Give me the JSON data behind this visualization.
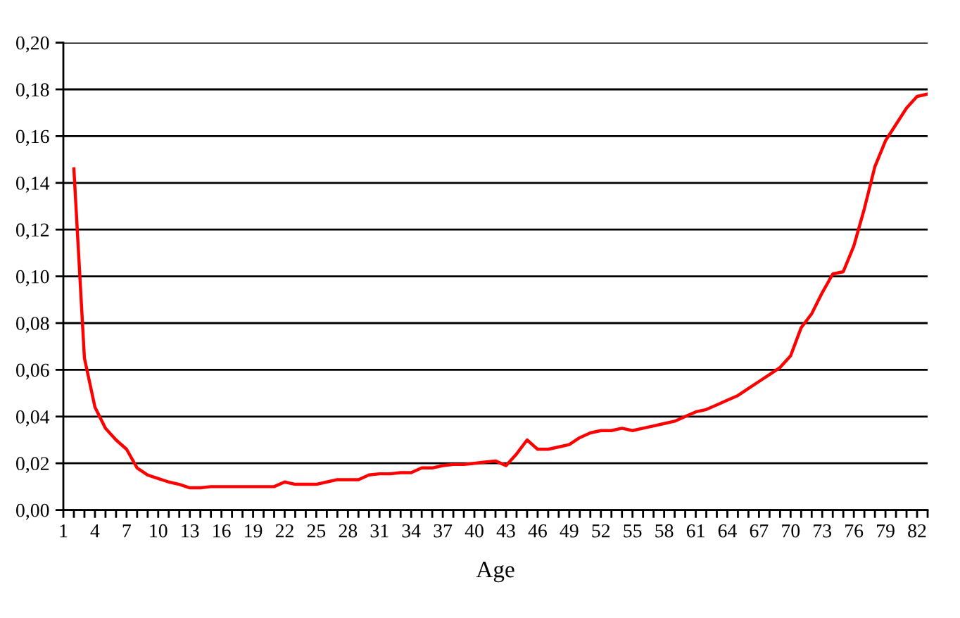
{
  "chart_data": {
    "type": "line",
    "xlabel": "Age",
    "categories": [
      "1",
      null,
      null,
      "4",
      null,
      null,
      "7",
      null,
      null,
      "10",
      null,
      null,
      "13",
      null,
      null,
      "16",
      null,
      null,
      "19",
      null,
      null,
      "22",
      null,
      null,
      "25",
      null,
      null,
      "28",
      null,
      null,
      "31",
      null,
      null,
      "34",
      null,
      null,
      "37",
      null,
      null,
      "40",
      null,
      null,
      "43",
      null,
      null,
      "46",
      null,
      null,
      "49",
      null,
      null,
      "52",
      null,
      null,
      "55",
      null,
      null,
      "58",
      null,
      null,
      "61",
      null,
      null,
      "64",
      null,
      null,
      "67",
      null,
      null,
      "70",
      null,
      null,
      "73",
      null,
      null,
      "76",
      null,
      null,
      "79",
      null,
      null,
      "82",
      null
    ],
    "series": [
      {
        "color": "#ff0000",
        "values": [
          null,
          0.146,
          0.065,
          0.044,
          0.035,
          0.03,
          0.026,
          0.018,
          0.015,
          0.0135,
          0.012,
          0.011,
          0.0095,
          0.0095,
          0.01,
          0.01,
          0.01,
          0.01,
          0.01,
          0.01,
          0.01,
          0.012,
          0.011,
          0.011,
          0.011,
          0.012,
          0.013,
          0.013,
          0.013,
          0.015,
          0.0155,
          0.0155,
          0.016,
          0.016,
          0.018,
          0.018,
          0.019,
          0.0195,
          0.0195,
          0.02,
          0.0205,
          0.021,
          0.019,
          0.024,
          0.03,
          0.026,
          0.026,
          0.027,
          0.028,
          0.031,
          0.033,
          0.034,
          0.034,
          0.035,
          0.034,
          0.035,
          0.036,
          0.037,
          0.038,
          0.04,
          0.042,
          0.043,
          0.045,
          0.047,
          0.049,
          0.052,
          0.055,
          0.058,
          0.061,
          0.066,
          0.078,
          0.084,
          0.093,
          0.101,
          0.102,
          0.113,
          0.129,
          0.147,
          0.158,
          0.165,
          0.172,
          0.177,
          0.178
        ]
      }
    ],
    "ylim": [
      0,
      0.2
    ],
    "yticks": [
      {
        "value": 0,
        "label": "0,00"
      },
      {
        "value": 0.02,
        "label": "0,02"
      },
      {
        "value": 0.04,
        "label": "0,04"
      },
      {
        "value": 0.06,
        "label": "0,06"
      },
      {
        "value": 0.08,
        "label": "0,08"
      },
      {
        "value": 0.1,
        "label": "0,10"
      },
      {
        "value": 0.12,
        "label": "0,12"
      },
      {
        "value": 0.14,
        "label": "0,14"
      },
      {
        "value": 0.16,
        "label": "0,16"
      },
      {
        "value": 0.18,
        "label": "0,18"
      },
      {
        "value": 0.2,
        "label": "0,20"
      }
    ],
    "grid": "y",
    "marker": "none",
    "line_style": "solid"
  }
}
